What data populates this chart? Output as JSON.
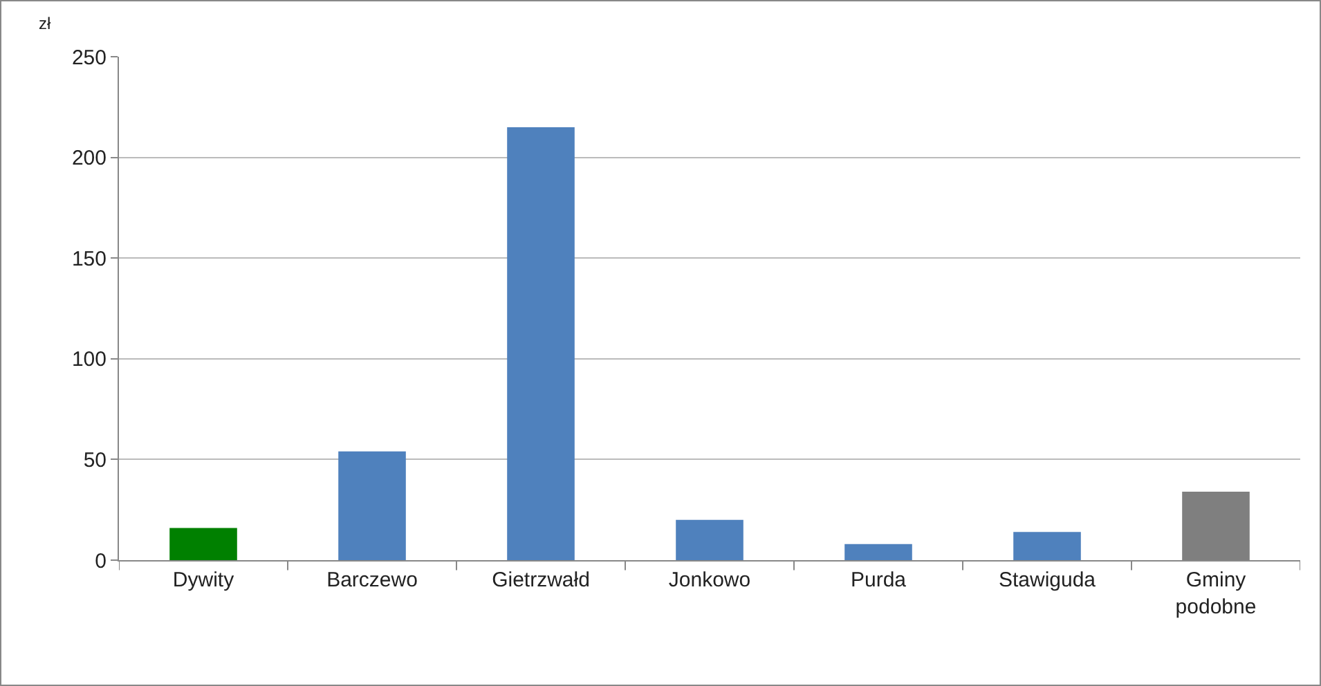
{
  "chart_data": {
    "type": "bar",
    "ylabel": "zł",
    "categories": [
      "Dywity",
      "Barczewo",
      "Gietrzwałd",
      "Jonkowo",
      "Purda",
      "Stawiguda",
      "Gminy podobne"
    ],
    "values": [
      16,
      54,
      215,
      20,
      8,
      14,
      34
    ],
    "colors": [
      "#008000",
      "#4f81bd",
      "#4f81bd",
      "#4f81bd",
      "#4f81bd",
      "#4f81bd",
      "#7f7f7f"
    ],
    "ylim": [
      0,
      250
    ],
    "yticks": [
      0,
      50,
      100,
      150,
      200,
      250
    ],
    "grid": "y"
  }
}
